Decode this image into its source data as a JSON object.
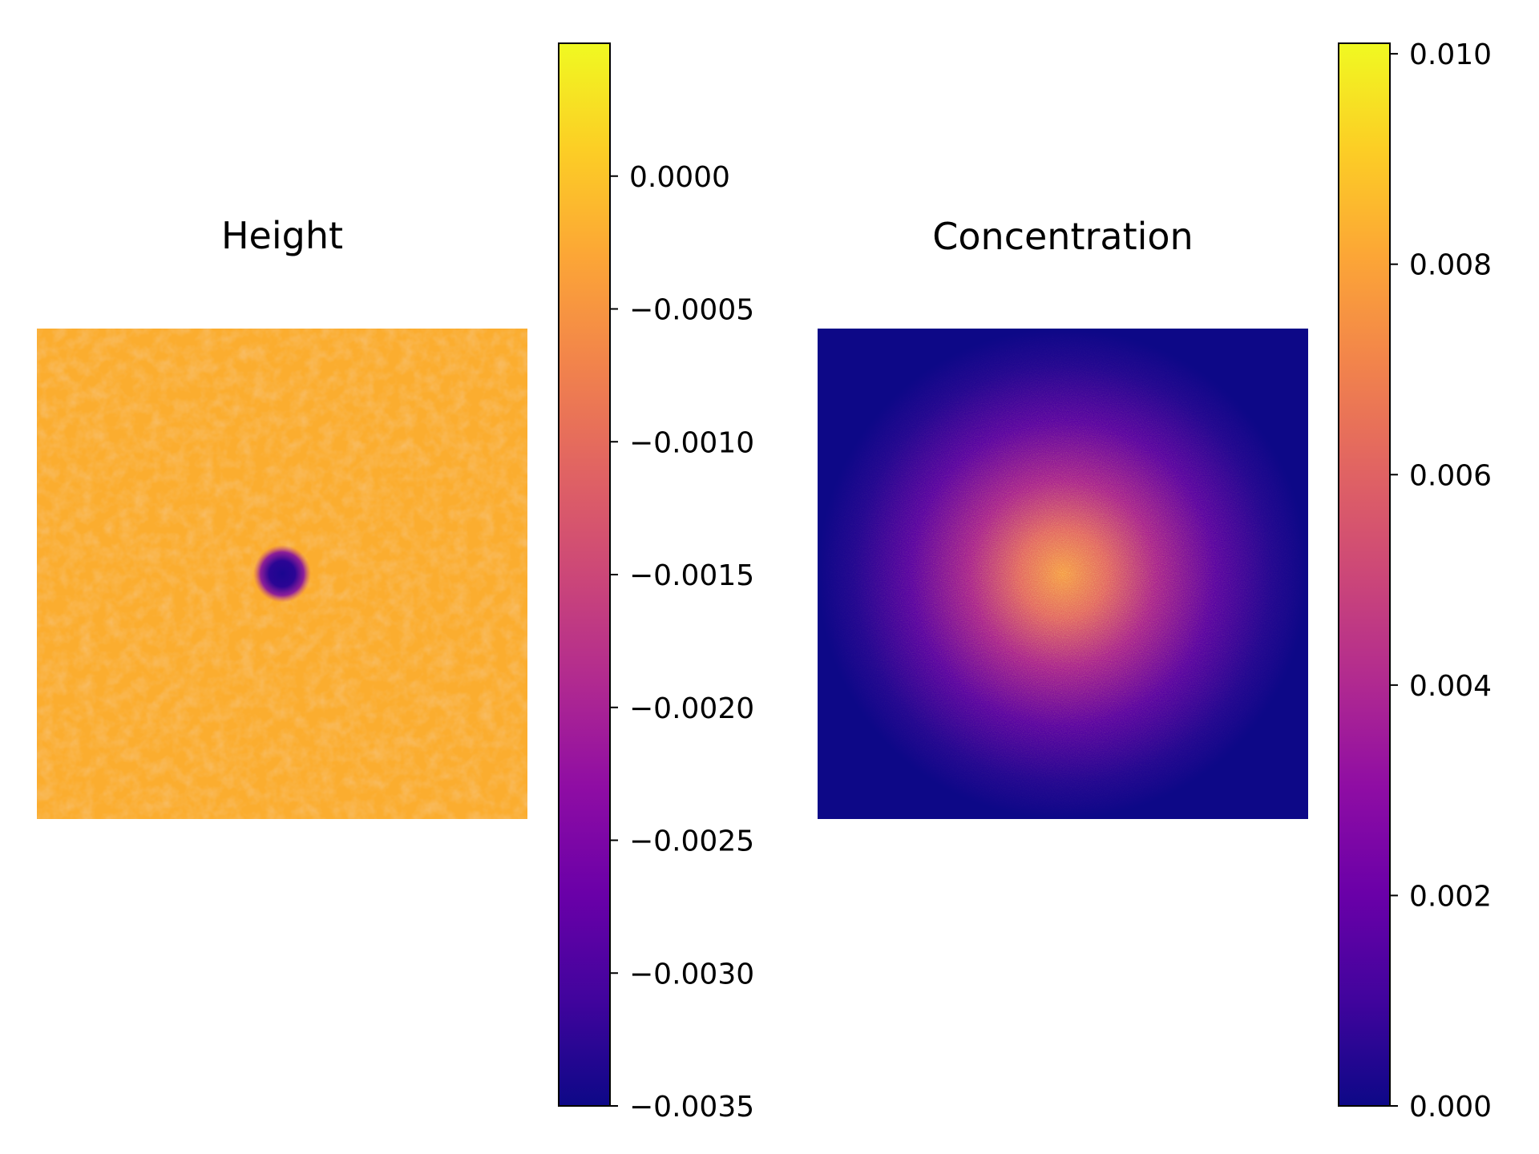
{
  "chart_data": [
    {
      "type": "heatmap",
      "title": "Height",
      "colormap": "plasma",
      "axes": "off",
      "description_of_field": "uniform noisy field near 0.0000 with a small dark circular depression at center",
      "background_value": 0.0,
      "center_min_value": -0.0035,
      "colorbar": {
        "vmin": -0.0035,
        "vmax": 0.0005,
        "ticks": [
          0.0,
          -0.0005,
          -0.001,
          -0.0015,
          -0.002,
          -0.0025,
          -0.003,
          -0.0035
        ],
        "tick_labels": [
          "0.0000",
          "−0.0005",
          "−0.0010",
          "−0.0015",
          "−0.0020",
          "−0.0025",
          "−0.0030",
          "−0.0035"
        ]
      }
    },
    {
      "type": "heatmap",
      "title": "Concentration",
      "colormap": "plasma",
      "axes": "off",
      "description_of_field": "noisy radial blob peaked at center, decaying to 0 at edges",
      "peak_value": 0.008,
      "edge_value": 0.0,
      "colorbar": {
        "vmin": 0.0,
        "vmax": 0.0101,
        "ticks": [
          0.01,
          0.008,
          0.006,
          0.004,
          0.002,
          0.0
        ],
        "tick_labels": [
          "0.010",
          "0.008",
          "0.006",
          "0.004",
          "0.002",
          "0.000"
        ]
      }
    }
  ],
  "colors": {
    "plasma_stops": [
      "#0d0887",
      "#41049d",
      "#6a00a8",
      "#8f0da4",
      "#b12a90",
      "#cc4778",
      "#e16462",
      "#f2844b",
      "#fca636",
      "#fcce25",
      "#f0f921"
    ]
  }
}
